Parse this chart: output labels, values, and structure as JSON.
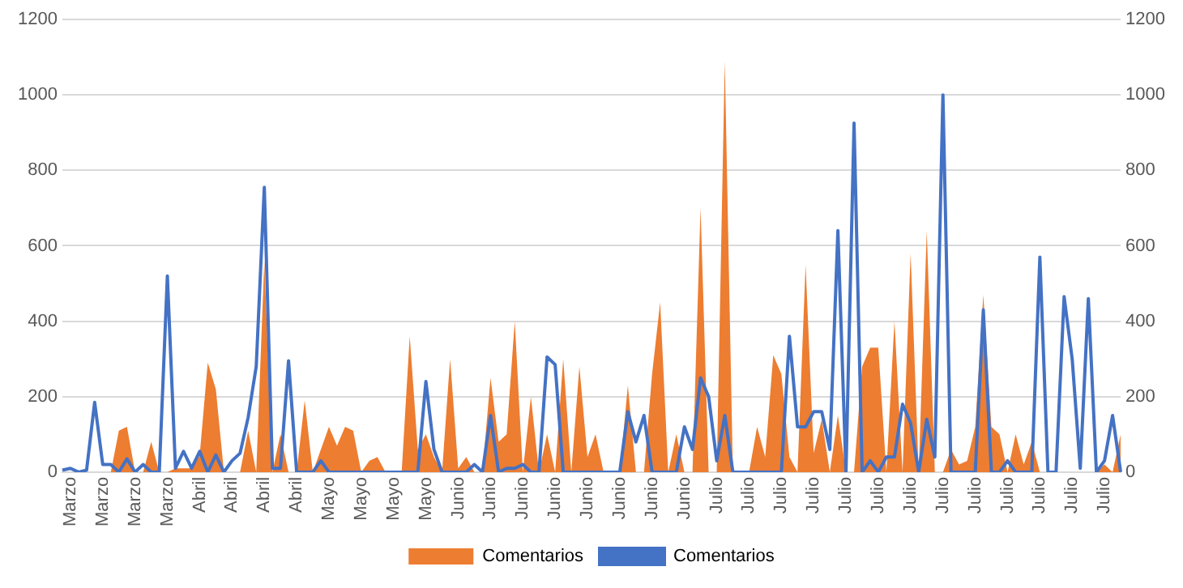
{
  "chart_data": {
    "type": "area",
    "categories": [
      null,
      "Marzo",
      null,
      null,
      null,
      "Marzo",
      null,
      null,
      null,
      "Marzo",
      null,
      null,
      null,
      "Marzo",
      null,
      null,
      null,
      "Abril",
      null,
      null,
      null,
      "Abril",
      null,
      null,
      null,
      "Abril",
      null,
      null,
      null,
      "Abril",
      null,
      null,
      null,
      "Mayo",
      null,
      null,
      null,
      "Mayo",
      null,
      null,
      null,
      "Mayo",
      null,
      null,
      null,
      "Mayo",
      null,
      null,
      null,
      "Junio",
      null,
      null,
      null,
      "Junio",
      null,
      null,
      null,
      "Junio",
      null,
      null,
      null,
      "Junio",
      null,
      null,
      null,
      "Junio",
      null,
      null,
      null,
      "Junio",
      null,
      null,
      null,
      "Junio",
      null,
      null,
      null,
      "Junio",
      null,
      null,
      null,
      "Julio",
      null,
      null,
      null,
      "Julio",
      null,
      null,
      null,
      "Julio",
      null,
      null,
      null,
      "Julio",
      null,
      null,
      null,
      "Julio",
      null,
      null,
      null,
      "Julio",
      null,
      null,
      null,
      "Julio",
      null,
      null,
      null,
      "Julio",
      null,
      null,
      null,
      "Julio",
      null,
      null,
      null,
      "Julio",
      null,
      null,
      null,
      "Julio",
      null,
      null,
      null,
      "Julio",
      null,
      null,
      null,
      "Julio",
      null,
      null
    ],
    "series": [
      {
        "name": "Comentarios",
        "color": "#ed7d31",
        "values": [
          0,
          0,
          0,
          0,
          0,
          0,
          0,
          110,
          120,
          0,
          0,
          80,
          0,
          0,
          10,
          10,
          10,
          45,
          290,
          220,
          0,
          0,
          0,
          110,
          0,
          560,
          0,
          100,
          0,
          0,
          190,
          0,
          60,
          120,
          70,
          120,
          110,
          0,
          30,
          40,
          0,
          0,
          0,
          360,
          60,
          100,
          40,
          0,
          300,
          10,
          40,
          0,
          0,
          250,
          80,
          100,
          400,
          0,
          200,
          0,
          100,
          0,
          300,
          0,
          280,
          40,
          100,
          0,
          0,
          0,
          230,
          0,
          0,
          260,
          450,
          0,
          100,
          0,
          0,
          700,
          0,
          0,
          1090,
          0,
          0,
          0,
          120,
          40,
          310,
          260,
          40,
          0,
          550,
          50,
          140,
          0,
          150,
          0,
          0,
          280,
          330,
          330,
          0,
          400,
          0,
          580,
          0,
          640,
          0,
          0,
          60,
          20,
          30,
          120,
          470,
          120,
          100,
          0,
          100,
          20,
          80,
          0,
          0,
          0,
          0,
          0,
          0,
          0,
          0,
          20,
          0,
          100
        ]
      },
      {
        "name": "Comentarios",
        "type": "line",
        "color": "#4472c4",
        "values": [
          5,
          10,
          0,
          5,
          185,
          20,
          20,
          0,
          35,
          0,
          20,
          0,
          0,
          520,
          10,
          55,
          10,
          55,
          0,
          45,
          0,
          30,
          50,
          145,
          280,
          755,
          10,
          10,
          295,
          0,
          0,
          0,
          30,
          0,
          0,
          0,
          0,
          0,
          0,
          0,
          0,
          0,
          0,
          0,
          0,
          240,
          60,
          0,
          0,
          0,
          0,
          20,
          0,
          150,
          0,
          10,
          10,
          20,
          0,
          0,
          305,
          285,
          0,
          0,
          0,
          0,
          0,
          0,
          0,
          0,
          160,
          80,
          150,
          0,
          0,
          0,
          0,
          120,
          60,
          250,
          200,
          30,
          150,
          0,
          0,
          0,
          0,
          0,
          0,
          0,
          360,
          120,
          120,
          160,
          160,
          60,
          640,
          0,
          925,
          0,
          30,
          0,
          40,
          40,
          180,
          130,
          0,
          140,
          40,
          1000,
          0,
          0,
          0,
          0,
          430,
          0,
          0,
          30,
          0,
          0,
          0,
          570,
          0,
          0,
          465,
          300,
          10,
          460,
          0,
          30,
          150,
          0
        ]
      }
    ],
    "ylim": [
      0,
      1200
    ],
    "yticks": [
      0,
      200,
      400,
      600,
      800,
      1000,
      1200
    ],
    "y2lim": [
      0,
      1200
    ],
    "y2ticks": [
      0,
      200,
      400,
      600,
      800,
      1000,
      1200
    ],
    "grid": "y",
    "legend": "bottom",
    "marker": "none",
    "line_style": "solid"
  }
}
